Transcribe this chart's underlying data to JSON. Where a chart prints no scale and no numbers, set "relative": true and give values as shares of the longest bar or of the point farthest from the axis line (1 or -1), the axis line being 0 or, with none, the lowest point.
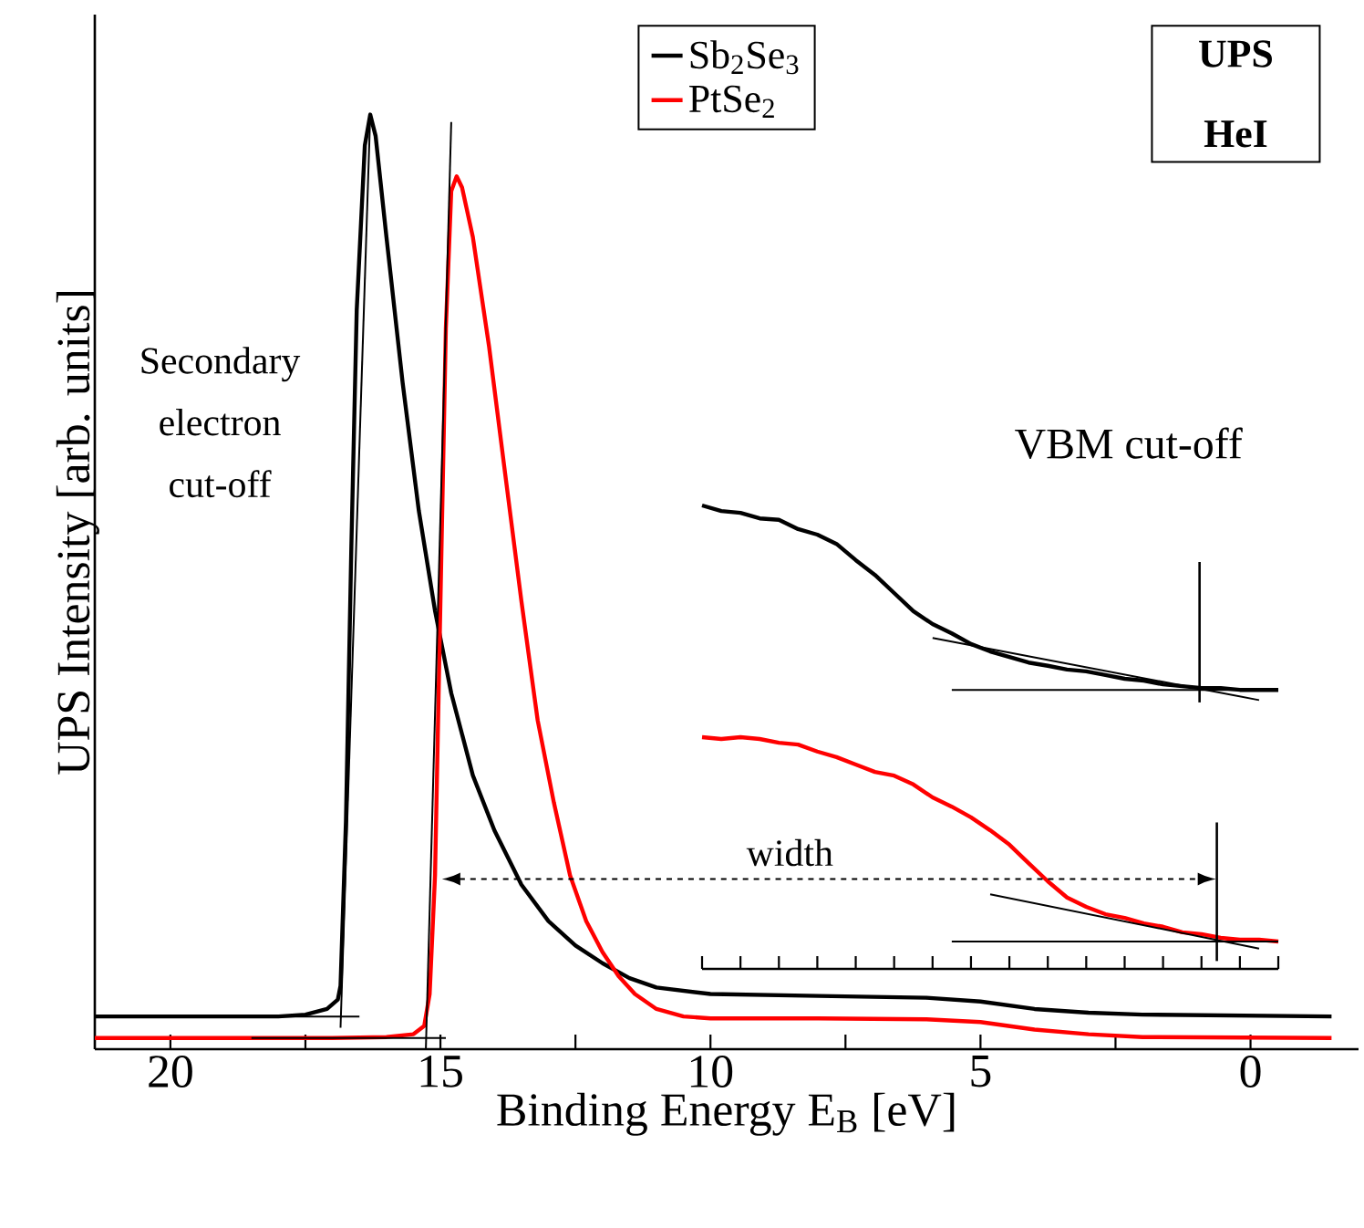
{
  "chart_data": [
    {
      "type": "line",
      "relative": true,
      "xlabel": "Binding Energy  E$_{B}$  [eV]",
      "ylabel": "UPS Intensity  [arb. units]",
      "xlim": [
        21.4,
        -2.0
      ],
      "xticks": [
        20,
        {
          "value": 17.5,
          "label": null
        },
        15,
        {
          "value": 12.5,
          "label": null
        },
        10,
        {
          "value": 7.5,
          "label": null
        },
        5,
        {
          "value": 2.5,
          "label": null
        },
        0
      ],
      "legend": "top",
      "annotations": [
        "Secondary electron cut-off",
        "width",
        "**UPS** **HeI**"
      ],
      "series": [
        {
          "name": "Sb$_{2}$Se$_{3}$",
          "color": "#000000",
          "x": [
            21.4,
            18,
            17.5,
            17.1,
            16.9,
            16.85,
            16.75,
            16.65,
            16.55,
            16.4,
            16.3,
            16.2,
            16.0,
            15.7,
            15.4,
            15.1,
            14.8,
            14.4,
            14.0,
            13.5,
            13.0,
            12.5,
            12.0,
            11.5,
            11.0,
            10.0,
            8.0,
            6.0,
            5.0,
            4.0,
            3.0,
            2.0,
            -1.5
          ],
          "values": [
            0.035,
            0.035,
            0.037,
            0.043,
            0.053,
            0.068,
            0.244,
            0.537,
            0.791,
            0.967,
            1,
            0.977,
            0.869,
            0.713,
            0.576,
            0.469,
            0.381,
            0.293,
            0.234,
            0.176,
            0.137,
            0.111,
            0.092,
            0.076,
            0.066,
            0.059,
            0.057,
            0.055,
            0.051,
            0.043,
            0.039,
            0.037,
            0.035
          ]
        },
        {
          "name": "PtSe$_{2}$",
          "color": "#ff0000",
          "x": [
            21.4,
            17,
            16,
            15.5,
            15.3,
            15.2,
            15.1,
            15.0,
            14.9,
            14.8,
            14.7,
            14.6,
            14.4,
            14.1,
            13.8,
            13.5,
            13.2,
            12.9,
            12.6,
            12.3,
            12.0,
            11.7,
            11.4,
            11.0,
            10.5,
            10.0,
            8.0,
            6.0,
            5.0,
            4.0,
            3.0,
            2.0,
            -1.5
          ],
          "values": [
            0.012,
            0.012,
            0.013,
            0.016,
            0.025,
            0.059,
            0.186,
            0.479,
            0.771,
            0.918,
            0.934,
            0.922,
            0.869,
            0.752,
            0.615,
            0.479,
            0.352,
            0.264,
            0.186,
            0.137,
            0.104,
            0.078,
            0.059,
            0.043,
            0.035,
            0.033,
            0.033,
            0.032,
            0.029,
            0.021,
            0.016,
            0.013,
            0.012
          ]
        },
        {
          "type": "line",
          "color": "#000000",
          "x": [
            16.3,
            16.85
          ],
          "values": [
            1.0,
            0.023
          ]
        },
        {
          "type": "line",
          "color": "#000000",
          "x": [
            21.0,
            16.5
          ],
          "values": [
            0.035,
            0.035
          ]
        },
        {
          "type": "line",
          "color": "#000000",
          "x": [
            14.8,
            15.27
          ],
          "values": [
            0.992,
            0.0
          ]
        },
        {
          "type": "line",
          "color": "#000000",
          "x": [
            18.5,
            14.9
          ],
          "values": [
            0.012,
            0.012
          ]
        }
      ]
    },
    {
      "type": "line",
      "relative": true,
      "title": "VBM cut-off",
      "categories": [
        null,
        null,
        null,
        null,
        null,
        null,
        null,
        null,
        null,
        null,
        null,
        null,
        null,
        null,
        null,
        null,
        null,
        null,
        null,
        null,
        null,
        null,
        null,
        null,
        null,
        null,
        null,
        null,
        null,
        null,
        null
      ],
      "series": [
        {
          "color": "#000000",
          "values": [
            1,
            0.988,
            0.984,
            0.972,
            0.969,
            0.949,
            0.937,
            0.917,
            0.882,
            0.85,
            0.811,
            0.772,
            0.744,
            0.724,
            0.701,
            0.685,
            0.673,
            0.661,
            0.654,
            0.646,
            0.642,
            0.634,
            0.626,
            0.622,
            0.614,
            0.61,
            0.606,
            0.606,
            0.602,
            0.602,
            0.602
          ]
        },
        {
          "color": "#ff0000",
          "values": [
            0.5,
            0.496,
            0.5,
            0.496,
            0.488,
            0.484,
            0.469,
            0.457,
            0.441,
            0.425,
            0.417,
            0.398,
            0.37,
            0.35,
            0.327,
            0.299,
            0.268,
            0.228,
            0.189,
            0.154,
            0.134,
            0.118,
            0.11,
            0.098,
            0.091,
            0.079,
            0.075,
            0.067,
            0.063,
            0.063,
            0.059
          ]
        },
        {
          "color": "#000000",
          "values": [
            null,
            null,
            null,
            null,
            null,
            null,
            null,
            null,
            null,
            null,
            null,
            null,
            0.714,
            null,
            null,
            null,
            null,
            null,
            null,
            null,
            null,
            null,
            null,
            null,
            null,
            null,
            null,
            null,
            null,
            0.58,
            null
          ]
        },
        {
          "color": "#000000",
          "values": [
            null,
            null,
            null,
            null,
            null,
            null,
            null,
            null,
            null,
            null,
            null,
            null,
            null,
            0.602,
            null,
            null,
            null,
            null,
            null,
            null,
            null,
            null,
            null,
            null,
            null,
            null,
            null,
            null,
            null,
            null,
            0.602
          ]
        },
        {
          "color": "#000000",
          "values": [
            null,
            null,
            null,
            null,
            null,
            null,
            null,
            null,
            null,
            null,
            null,
            null,
            null,
            null,
            null,
            0.161,
            null,
            null,
            null,
            null,
            null,
            null,
            null,
            null,
            null,
            null,
            null,
            null,
            null,
            0.044,
            null
          ]
        },
        {
          "color": "#000000",
          "values": [
            null,
            null,
            null,
            null,
            null,
            null,
            null,
            null,
            null,
            null,
            null,
            null,
            null,
            0.059,
            null,
            null,
            null,
            null,
            null,
            null,
            null,
            null,
            null,
            null,
            null,
            null,
            null,
            null,
            null,
            null,
            0.059
          ]
        }
      ]
    }
  ]
}
